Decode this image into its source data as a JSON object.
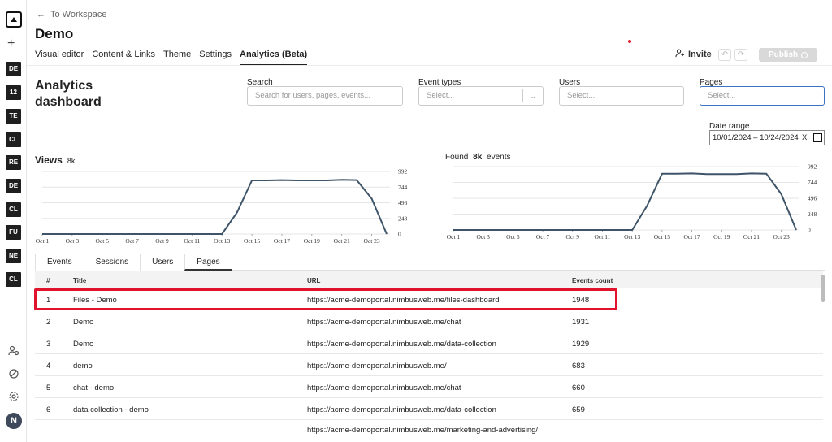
{
  "nav": {
    "back_label": "To Workspace",
    "title": "Demo",
    "tabs": [
      {
        "label": "Visual editor"
      },
      {
        "label": "Content & Links"
      },
      {
        "label": "Theme"
      },
      {
        "label": "Settings"
      },
      {
        "label": "Analytics (Beta)"
      }
    ],
    "invite_label": "Invite",
    "publish_label": "Publish"
  },
  "rail": {
    "chips": [
      "DE",
      "12",
      "TE",
      "CL",
      "RE",
      "DE",
      "CL",
      "FU",
      "NE",
      "CL"
    ],
    "avatar_label": "N"
  },
  "dashboard": {
    "title": "Analytics dashboard",
    "filters": {
      "search": {
        "label": "Search",
        "placeholder": "Search for users, pages, events..."
      },
      "event_types": {
        "label": "Event types",
        "placeholder": "Select..."
      },
      "users": {
        "label": "Users",
        "placeholder": "Select..."
      },
      "pages": {
        "label": "Pages",
        "placeholder": "Select..."
      }
    },
    "date_range": {
      "label": "Date range",
      "value": "10/01/2024 – 10/24/2024",
      "clear": "X"
    }
  },
  "views": {
    "label": "Views",
    "count": "8k"
  },
  "found": {
    "prefix": "Found",
    "count": "8k",
    "suffix": "events"
  },
  "chart_data": [
    {
      "type": "line",
      "title": "Views",
      "x": [
        "Oct 1",
        "Oct 2",
        "Oct 3",
        "Oct 4",
        "Oct 5",
        "Oct 6",
        "Oct 7",
        "Oct 8",
        "Oct 9",
        "Oct 10",
        "Oct 11",
        "Oct 12",
        "Oct 13",
        "Oct 14",
        "Oct 15",
        "Oct 16",
        "Oct 17",
        "Oct 18",
        "Oct 19",
        "Oct 20",
        "Oct 21",
        "Oct 22",
        "Oct 23",
        "Oct 24"
      ],
      "x_ticks": [
        "Oct 1",
        "Oct 3",
        "Oct 5",
        "Oct 7",
        "Oct 9",
        "Oct 11",
        "Oct 13",
        "Oct 15",
        "Oct 17",
        "Oct 19",
        "Oct 21",
        "Oct 23"
      ],
      "values": [
        0,
        0,
        0,
        0,
        0,
        0,
        0,
        0,
        0,
        0,
        0,
        0,
        0,
        340,
        850,
        850,
        855,
        850,
        850,
        850,
        860,
        855,
        560,
        0
      ],
      "y_ticks": [
        0,
        248,
        496,
        744,
        992
      ],
      "ylim": [
        0,
        992
      ],
      "line_color": "#3e5468"
    },
    {
      "type": "line",
      "title": "Found 8k events",
      "x": [
        "Oct 1",
        "Oct 2",
        "Oct 3",
        "Oct 4",
        "Oct 5",
        "Oct 6",
        "Oct 7",
        "Oct 8",
        "Oct 9",
        "Oct 10",
        "Oct 11",
        "Oct 12",
        "Oct 13",
        "Oct 14",
        "Oct 15",
        "Oct 16",
        "Oct 17",
        "Oct 18",
        "Oct 19",
        "Oct 20",
        "Oct 21",
        "Oct 22",
        "Oct 23",
        "Oct 24"
      ],
      "x_ticks": [
        "Oct 1",
        "Oct 3",
        "Oct 5",
        "Oct 7",
        "Oct 9",
        "Oct 11",
        "Oct 13",
        "Oct 15",
        "Oct 17",
        "Oct 19",
        "Oct 21",
        "Oct 23"
      ],
      "values": [
        0,
        0,
        0,
        0,
        0,
        0,
        0,
        0,
        0,
        0,
        0,
        0,
        0,
        380,
        880,
        880,
        885,
        875,
        875,
        875,
        885,
        880,
        560,
        0
      ],
      "y_ticks": [
        0,
        248,
        496,
        744,
        992
      ],
      "ylim": [
        0,
        992
      ],
      "line_color": "#3e5468"
    }
  ],
  "table_tabs": [
    {
      "label": "Events"
    },
    {
      "label": "Sessions"
    },
    {
      "label": "Users"
    },
    {
      "label": "Pages"
    }
  ],
  "table": {
    "headers": [
      "#",
      "Title",
      "URL",
      "Events count"
    ],
    "rows": [
      {
        "n": "1",
        "title": "Files - Demo",
        "url": "https://acme-demoportal.nimbusweb.me/files-dashboard",
        "count": "1948"
      },
      {
        "n": "2",
        "title": "Demo",
        "url": "https://acme-demoportal.nimbusweb.me/chat",
        "count": "1931"
      },
      {
        "n": "3",
        "title": "Demo",
        "url": "https://acme-demoportal.nimbusweb.me/data-collection",
        "count": "1929"
      },
      {
        "n": "4",
        "title": "demo",
        "url": "https://acme-demoportal.nimbusweb.me/",
        "count": "683"
      },
      {
        "n": "5",
        "title": "chat - demo",
        "url": "https://acme-demoportal.nimbusweb.me/chat",
        "count": "660"
      },
      {
        "n": "6",
        "title": "data collection - demo",
        "url": "https://acme-demoportal.nimbusweb.me/data-collection",
        "count": "659"
      },
      {
        "n": "",
        "title": "",
        "url": "https://acme-demoportal.nimbusweb.me/marketing-and-advertising/",
        "count": ""
      }
    ]
  }
}
